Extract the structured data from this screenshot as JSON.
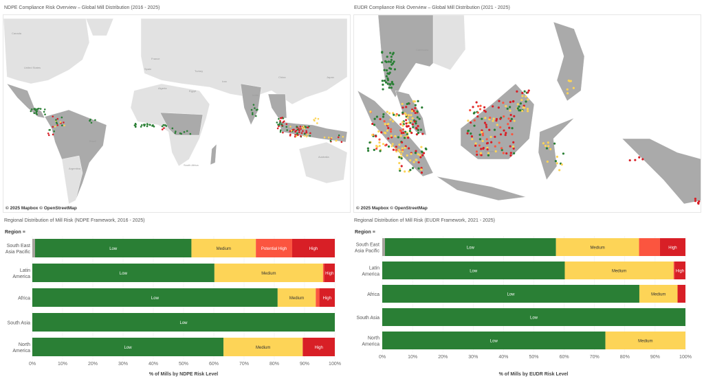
{
  "left_map": {
    "title": "NDPE Compliance Risk Overview – Global Mill Distribution (2016 - 2025)",
    "attribution": "© 2025 Mapbox  © OpenStreetMap",
    "labels": [
      "Canada",
      "United States",
      "France",
      "Spain",
      "Turkey",
      "Iran",
      "China",
      "Japan",
      "Algeria",
      "Egypt",
      "Brazil",
      "Argentina",
      "South Africa",
      "Australia",
      "India"
    ]
  },
  "right_map": {
    "title": "EUDR Compliance Risk Overview – Global Mill Distribution (2021 - 2025)",
    "attribution": "© 2025 Mapbox  © OpenStreetMap",
    "labels": [
      "Cambodia",
      "Indonesia"
    ]
  },
  "colors": {
    "Unknown": "#a8a39e",
    "Low": "#2a7f35",
    "Medium": "#fdd457",
    "Potential High": "#fb553f",
    "High": "#d81f26",
    "land_highlight": "#aaaaaa",
    "land_other": "#e2e2e2"
  },
  "chart_data": [
    {
      "type": "bar",
      "stacked": true,
      "orientation": "horizontal",
      "title": "Regional Distribution of Mill Risk (NDPE Framework, 2016 - 2025)",
      "ylabel": "Region",
      "xlabel": "% of Mills by NDPE Risk Level",
      "xlim": [
        0,
        100
      ],
      "xticks": [
        "0%",
        "10%",
        "20%",
        "30%",
        "40%",
        "50%",
        "60%",
        "70%",
        "80%",
        "90%",
        "100%"
      ],
      "grid": true,
      "categories": [
        "South East Asia Pacific",
        "Latin America",
        "Africa",
        "South Asia",
        "North America"
      ],
      "series": [
        {
          "name": "Unknown",
          "values": [
            0.9,
            0,
            0,
            0,
            0
          ]
        },
        {
          "name": "Low",
          "values": [
            51.7,
            60.2,
            81.1,
            100,
            63.2
          ]
        },
        {
          "name": "Medium",
          "values": [
            21.3,
            35.9,
            12.6,
            0,
            26.2
          ]
        },
        {
          "name": "Potential High",
          "values": [
            12.0,
            0.4,
            1.2,
            0,
            0
          ]
        },
        {
          "name": "High",
          "values": [
            14.1,
            3.5,
            5.1,
            0,
            10.6
          ]
        }
      ],
      "segment_labels": [
        [
          "",
          "Low",
          "Medium",
          "Potential High",
          "High"
        ],
        [
          "",
          "Low",
          "Medium",
          "",
          "High"
        ],
        [
          "",
          "Low",
          "Medium",
          "",
          "High"
        ],
        [
          "",
          "Low",
          "",
          "",
          ""
        ],
        [
          "",
          "Low",
          "Medium",
          "",
          "High"
        ]
      ]
    },
    {
      "type": "bar",
      "stacked": true,
      "orientation": "horizontal",
      "title": "Regional Distribution of Mill Risk (EUDR Framework, 2021 - 2025)",
      "ylabel": "Region",
      "xlabel": "% of Mills by EUDR Risk Level",
      "xlim": [
        0,
        100
      ],
      "xticks": [
        "0%",
        "10%",
        "20%",
        "30%",
        "40%",
        "50%",
        "60%",
        "70%",
        "80%",
        "90%",
        "100%"
      ],
      "grid": true,
      "categories": [
        "South East Asia Pacific",
        "Latin America",
        "Africa",
        "South Asia",
        "North America"
      ],
      "series": [
        {
          "name": "Unknown",
          "values": [
            0.9,
            0,
            0,
            0,
            0
          ]
        },
        {
          "name": "Low",
          "values": [
            56.4,
            60.2,
            84.8,
            100,
            73.6
          ]
        },
        {
          "name": "Medium",
          "values": [
            27.4,
            35.9,
            12.6,
            0,
            26.4
          ]
        },
        {
          "name": "Potential High",
          "values": [
            6.9,
            0.3,
            0,
            0,
            0
          ]
        },
        {
          "name": "High",
          "values": [
            8.4,
            3.6,
            2.6,
            0,
            0
          ]
        }
      ],
      "segment_labels": [
        [
          "",
          "Low",
          "Medium",
          "",
          "High"
        ],
        [
          "",
          "Low",
          "Medium",
          "",
          "High"
        ],
        [
          "",
          "Low",
          "Medium",
          "",
          ""
        ],
        [
          "",
          "Low",
          "",
          "",
          ""
        ],
        [
          "",
          "Low",
          "Medium",
          "",
          ""
        ]
      ]
    }
  ]
}
